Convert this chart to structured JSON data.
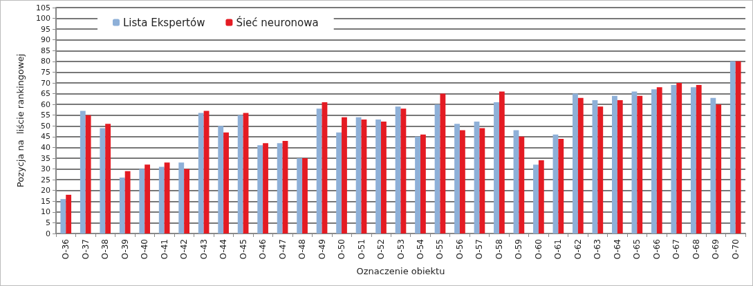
{
  "chart_data": {
    "type": "bar",
    "xlabel": "Oznaczenie obiektu",
    "ylabel": "Pozycja na  liście rankingowej",
    "categories": [
      "O-36",
      "O-37",
      "O-38",
      "O-39",
      "O-40",
      "O-41",
      "O-42",
      "O-43",
      "O-44",
      "O-45",
      "O-46",
      "O-47",
      "O-48",
      "O-49",
      "O-50",
      "O-51",
      "O-52",
      "O-53",
      "O-54",
      "O-55",
      "O-56",
      "O-57",
      "O-58",
      "O-59",
      "O-60",
      "O-61",
      "O-62",
      "O-63",
      "O-64",
      "O-65",
      "O-66",
      "O-67",
      "O-68",
      "O-69",
      "O-70"
    ],
    "series": [
      {
        "name": "Lista Ekspertów",
        "color": "#8eb0d8",
        "values": [
          16,
          57,
          49,
          26,
          30,
          31,
          33,
          56,
          50,
          55,
          41,
          42,
          35,
          58,
          47,
          54,
          53,
          59,
          45,
          60,
          51,
          52,
          61,
          48,
          32,
          46,
          65,
          62,
          64,
          66,
          67,
          69,
          68,
          63,
          80
        ]
      },
      {
        "name": "Śieć neuronowa",
        "color": "#e41b23",
        "values": [
          18,
          55,
          51,
          29,
          32,
          33,
          30,
          57,
          47,
          56,
          42,
          43,
          35,
          61,
          54,
          53,
          52,
          58,
          46,
          65,
          48,
          49,
          66,
          45,
          34,
          44,
          63,
          59,
          62,
          64,
          68,
          70,
          69,
          60,
          80
        ]
      }
    ],
    "ylim": [
      0,
      105
    ],
    "yticks": [
      0,
      5,
      10,
      15,
      20,
      25,
      30,
      35,
      40,
      45,
      50,
      55,
      60,
      65,
      70,
      75,
      80,
      85,
      90,
      95,
      100,
      105
    ],
    "grid": "y",
    "legend": "top left"
  }
}
